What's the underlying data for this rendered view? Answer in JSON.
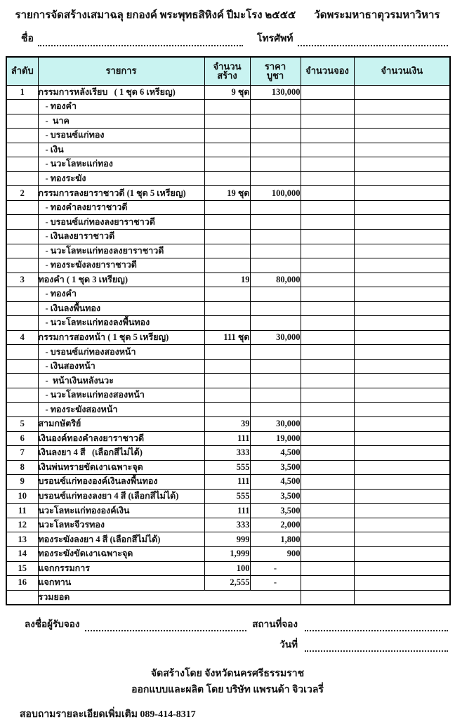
{
  "colors": {
    "header_bg": "#c9f3f1",
    "border": "#000000",
    "text": "#111111"
  },
  "header": {
    "title": "รายการจัดสร้างเสมาฉลุ ยกองค์ พระพุทธสิหิงค์ ปีมะโรง ๒๕๕๕",
    "temple": "วัดพระมหาธาตุวรมหาวิหาร",
    "name_label": "ชื่อ",
    "phone_label": "โทรศัพท์"
  },
  "table": {
    "headers": {
      "no": "ลำดับ",
      "item": "รายการ",
      "qty_line1": "จำนวน",
      "qty_line2": "สร้าง",
      "price_line1": "ราคา",
      "price_line2": "บูชา",
      "booking": "จำนวนจอง",
      "amount": "จำนวนเงิน"
    },
    "rows": [
      {
        "type": "main",
        "no": "1",
        "item": "กรรมการหลังเรียบ   ( 1 ชุด 6 เหรียญ)",
        "qty": "9 ชุด",
        "price": "130,000"
      },
      {
        "type": "sub",
        "no": "",
        "item": "- ทองคำ",
        "qty": "",
        "price": ""
      },
      {
        "type": "sub",
        "no": "",
        "item": "-  นาค",
        "qty": "",
        "price": ""
      },
      {
        "type": "sub",
        "no": "",
        "item": "- บรอนซ์แก่ทอง",
        "qty": "",
        "price": ""
      },
      {
        "type": "sub",
        "no": "",
        "item": "- เงิน",
        "qty": "",
        "price": ""
      },
      {
        "type": "sub",
        "no": "",
        "item": "- นวะโลหะแก่ทอง",
        "qty": "",
        "price": ""
      },
      {
        "type": "sub",
        "no": "",
        "item": "- ทองระฆัง",
        "qty": "",
        "price": ""
      },
      {
        "type": "main",
        "no": "2",
        "item": "กรรมการลงยาราชาวดี (1 ชุด 5 เหรียญ)",
        "qty": "19 ชุด",
        "price": "100,000"
      },
      {
        "type": "sub",
        "no": "",
        "item": "- ทองคำลงยาราชาวดี",
        "qty": "",
        "price": ""
      },
      {
        "type": "sub",
        "no": "",
        "item": "- บรอนซ์แก่ทองลงยาราชาวดี",
        "qty": "",
        "price": ""
      },
      {
        "type": "sub",
        "no": "",
        "item": "- เงินลงยาราชาวดี",
        "qty": "",
        "price": ""
      },
      {
        "type": "sub",
        "no": "",
        "item": "- นวะโลหะแก่ทองลงยาราชาวดี",
        "qty": "",
        "price": ""
      },
      {
        "type": "sub",
        "no": "",
        "item": "- ทองระฆังลงยาราชาวดี",
        "qty": "",
        "price": ""
      },
      {
        "type": "main",
        "no": "3",
        "item": "ทองคำ ( 1 ชุด 3 เหรียญ)",
        "qty": "19",
        "price": "80,000"
      },
      {
        "type": "sub",
        "no": "",
        "item": "- ทองคำ",
        "qty": "",
        "price": ""
      },
      {
        "type": "sub",
        "no": "",
        "item": "- เงินลงพื้นทอง",
        "qty": "",
        "price": ""
      },
      {
        "type": "sub",
        "no": "",
        "item": "- นวะโลหะแก่ทองลงพื้นทอง",
        "qty": "",
        "price": ""
      },
      {
        "type": "main",
        "no": "4",
        "item": "กรรมการสองหน้า ( 1 ชุด 5 เหรียญ)",
        "qty": "111 ชุด",
        "price": "30,000"
      },
      {
        "type": "sub",
        "no": "",
        "item": "- บรอนซ์แก่ทองสองหน้า",
        "qty": "",
        "price": ""
      },
      {
        "type": "sub",
        "no": "",
        "item": "- เงินสองหน้า",
        "qty": "",
        "price": ""
      },
      {
        "type": "sub",
        "no": "",
        "item": "-  หน้าเงินหลังนวะ",
        "qty": "",
        "price": ""
      },
      {
        "type": "sub",
        "no": "",
        "item": "- นวะโลหะแก่ทองสองหน้า",
        "qty": "",
        "price": ""
      },
      {
        "type": "sub",
        "no": "",
        "item": "- ทองระฆังสองหน้า",
        "qty": "",
        "price": ""
      },
      {
        "type": "main",
        "no": "5",
        "item": "สามกษัตริย์",
        "qty": "39",
        "price": "30,000"
      },
      {
        "type": "main",
        "no": "6",
        "item": "เงินองค์ทองคำลงยาราชาวดี",
        "qty": "111",
        "price": "19,000"
      },
      {
        "type": "main",
        "no": "7",
        "item": "เงินลงยา 4 สี   (เลือกสีไม่ได้)",
        "qty": "333",
        "price": "4,500"
      },
      {
        "type": "main",
        "no": "8",
        "item": "เงินพ่นทรายขัดเงาเฉพาะจุด",
        "qty": "555",
        "price": "3,500"
      },
      {
        "type": "main",
        "no": "9",
        "item": "บรอนซ์แก่ทององค์เงินลงพื้นทอง",
        "qty": "111",
        "price": "4,500"
      },
      {
        "type": "main",
        "no": "10",
        "item": "บรอนซ์แก่ทองลงยา 4 สี (เลือกสีไม่ได้)",
        "qty": "555",
        "price": "3,500"
      },
      {
        "type": "main",
        "no": "11",
        "item": "นวะโลหะแก่ทององค์เงิน",
        "qty": "111",
        "price": "3,500"
      },
      {
        "type": "main",
        "no": "12",
        "item": "นวะโลหะจีวรทอง",
        "qty": "333",
        "price": "2,000"
      },
      {
        "type": "main",
        "no": "13",
        "item": "ทองระฆังลงยา 4 สี (เลือกสีไม่ได้)",
        "qty": "999",
        "price": "1,800"
      },
      {
        "type": "main",
        "no": "14",
        "item": "ทองระฆังขัดเงาเฉพาะจุด",
        "qty": "1,999",
        "price": "900"
      },
      {
        "type": "main",
        "no": "15",
        "item": "แจกกรรมการ",
        "qty": "100",
        "price": "-"
      },
      {
        "type": "main",
        "no": "16",
        "item": "แจกทาน",
        "qty": "2,555",
        "price": "-"
      },
      {
        "type": "total",
        "no": "",
        "item": "รวมยอด",
        "qty": "",
        "price": ""
      }
    ]
  },
  "footer": {
    "sign_label": "ลงชื่อผู้รับจอง",
    "place_label": "สถานที่จอง",
    "date_label": "วันที่",
    "made_by": "จัดสร้างโดย จังหวัดนครศรีธรรมราช",
    "designed_by": "ออกแบบและผลิต โดย บริษัท แพรนด้า จิวเวลรี่",
    "contact": "สอบถามรายละเอียดเพิ่มเติม  089-414-8317"
  }
}
